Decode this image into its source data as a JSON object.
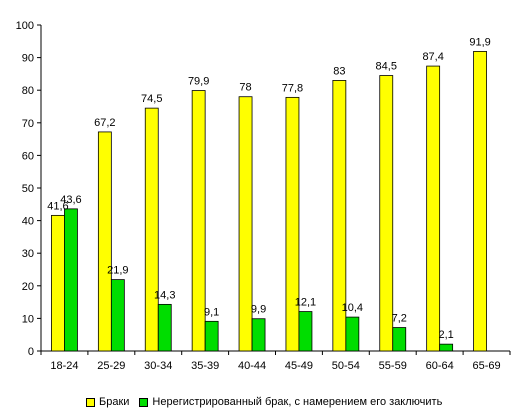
{
  "chart_data": {
    "type": "bar",
    "categories": [
      "18-24",
      "25-29",
      "30-34",
      "35-39",
      "40-44",
      "45-49",
      "50-54",
      "55-59",
      "60-64",
      "65-69"
    ],
    "series": [
      {
        "name": "Браки",
        "color": "#ffff00",
        "values": [
          41.6,
          67.2,
          74.5,
          79.9,
          78,
          77.8,
          83,
          84.5,
          87.4,
          91.9
        ],
        "labels": [
          "41,6",
          "67,2",
          "74,5",
          "79,9",
          "78",
          "77,8",
          "83",
          "84,5",
          "87,4",
          "91,9"
        ]
      },
      {
        "name": "Нерегистрированный брак, с намерением его заключить",
        "color": "#00dd00",
        "values": [
          43.6,
          21.9,
          14.3,
          9.1,
          9.9,
          12.1,
          10.4,
          7.2,
          2.1,
          null
        ],
        "labels": [
          "43,6",
          "21,9",
          "14,3",
          "9,1",
          "9,9",
          "12,1",
          "10,4",
          "7,2",
          "2,1",
          ""
        ]
      }
    ],
    "ylim": [
      0,
      100
    ],
    "yticks": [
      0,
      10,
      20,
      30,
      40,
      50,
      60,
      70,
      80,
      90,
      100
    ],
    "grid": false,
    "legend_position": "bottom",
    "title": "",
    "xlabel": "",
    "ylabel": ""
  }
}
